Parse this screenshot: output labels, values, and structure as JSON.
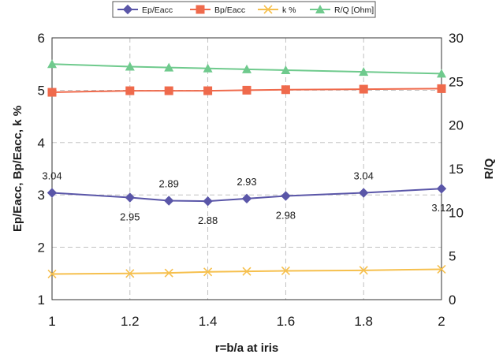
{
  "chart_data": {
    "type": "line",
    "xlabel": "r=b/a at iris",
    "ylabel_left": "Ep/Eacc, Bp/Eacc, k %",
    "ylabel_right": "R/Q",
    "xlim": [
      1,
      2
    ],
    "ylim_left": [
      1,
      6
    ],
    "ylim_right": [
      0,
      30
    ],
    "x_ticks": [
      "1",
      "1.2",
      "1.4",
      "1.6",
      "1.8",
      "2"
    ],
    "y_left_ticks": [
      "1",
      "2",
      "3",
      "4",
      "5",
      "6"
    ],
    "y_right_ticks": [
      "0",
      "5",
      "10",
      "15",
      "20",
      "25",
      "30"
    ],
    "grid": true,
    "legend_position": "top",
    "series": [
      {
        "name": "Ep/Eacc",
        "axis": "left",
        "marker": "diamond",
        "color": "#5a56a8",
        "points": [
          [
            1.0,
            3.04
          ],
          [
            1.2,
            2.95
          ],
          [
            1.3,
            2.89
          ],
          [
            1.4,
            2.88
          ],
          [
            1.5,
            2.93
          ],
          [
            1.6,
            2.98
          ],
          [
            1.8,
            3.04
          ],
          [
            2.0,
            3.12
          ]
        ],
        "labels": [
          "3.04",
          "2.95",
          "2.89",
          "2.88",
          "2.93",
          "2.98",
          "3.04",
          "3.12"
        ],
        "label_positions": [
          "above",
          "below",
          "above",
          "below",
          "above",
          "below",
          "above",
          "below"
        ]
      },
      {
        "name": "Bp/Eacc",
        "axis": "left",
        "marker": "square",
        "color": "#ef6a4c",
        "points": [
          [
            1.0,
            4.96
          ],
          [
            1.2,
            4.99
          ],
          [
            1.3,
            4.99
          ],
          [
            1.4,
            4.99
          ],
          [
            1.5,
            5.0
          ],
          [
            1.6,
            5.01
          ],
          [
            1.8,
            5.02
          ],
          [
            2.0,
            5.03
          ]
        ]
      },
      {
        "name": "k %",
        "axis": "left",
        "marker": "x",
        "color": "#f6c04e",
        "points": [
          [
            1.0,
            1.49
          ],
          [
            1.2,
            1.5
          ],
          [
            1.3,
            1.51
          ],
          [
            1.4,
            1.53
          ],
          [
            1.5,
            1.54
          ],
          [
            1.6,
            1.55
          ],
          [
            1.8,
            1.56
          ],
          [
            2.0,
            1.58
          ]
        ]
      },
      {
        "name": "R/Q [Ohm]",
        "axis": "right",
        "marker": "triangle",
        "color": "#6fca8d",
        "points": [
          [
            1.0,
            27.0
          ],
          [
            1.2,
            26.7
          ],
          [
            1.3,
            26.6
          ],
          [
            1.4,
            26.5
          ],
          [
            1.5,
            26.4
          ],
          [
            1.6,
            26.3
          ],
          [
            1.8,
            26.1
          ],
          [
            2.0,
            25.9
          ]
        ]
      }
    ]
  }
}
